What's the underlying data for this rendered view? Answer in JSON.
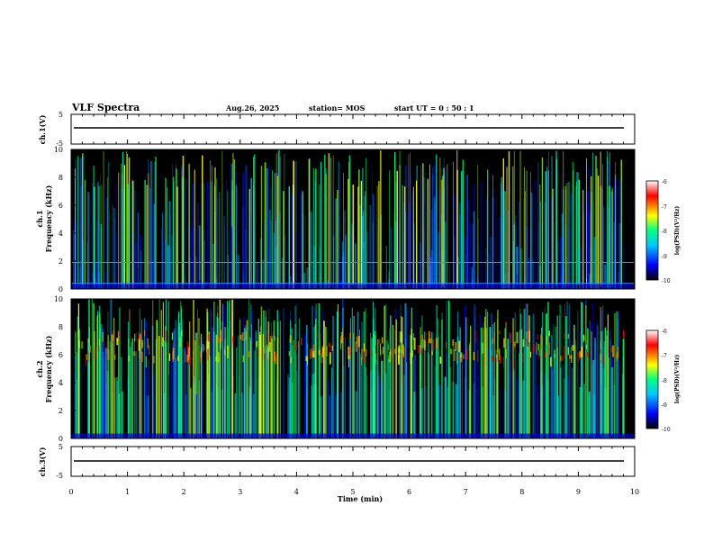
{
  "chart_data": {
    "type": "heatmap",
    "title": "VLF Spectra",
    "date": "Aug.26, 2025",
    "station": "station= MOS",
    "start_ut": "start UT =  0 : 50 : 1",
    "xlabel": "Time (min)",
    "xlim": [
      0,
      10
    ],
    "xticks": [
      "0",
      "1",
      "2",
      "3",
      "4",
      "5",
      "6",
      "7",
      "8",
      "9",
      "10"
    ],
    "panels": [
      {
        "id": "ch1-waveform",
        "kind": "line",
        "ylabel": "ch.1(V)",
        "ylim": [
          -5,
          5
        ],
        "yticks": [
          "5",
          "-5"
        ],
        "baseline": 0
      },
      {
        "id": "ch1-spectrogram",
        "kind": "spectrogram",
        "ylabel": "ch.1\nFrequency (kHz)",
        "ylabel_line1": "ch.1",
        "ylabel_line2": "Frequency (kHz)",
        "ylim": [
          0,
          10
        ],
        "yticks": [
          "0",
          "2",
          "4",
          "6",
          "8",
          "10"
        ],
        "narrowband_lines_khz": [
          0.4,
          1.9
        ],
        "typical_upper_khz": 9.0
      },
      {
        "id": "ch2-spectrogram",
        "kind": "spectrogram",
        "ylabel_line1": "ch.2",
        "ylabel_line2": "Frequency (kHz)",
        "ylim": [
          0,
          10
        ],
        "yticks": [
          "0",
          "2",
          "4",
          "6",
          "8",
          "10"
        ],
        "intense_band_khz": [
          5.5,
          7.5
        ]
      },
      {
        "id": "ch3-waveform",
        "kind": "line",
        "ylabel": "ch.3(V)",
        "ylim": [
          -5,
          5
        ],
        "yticks": [
          "5",
          "-5"
        ],
        "baseline": 0
      }
    ],
    "colorbar": {
      "label": "log(PSD)(V²/Hz)",
      "range": [
        -10,
        -6
      ],
      "ticks": [
        "-6",
        "-7",
        "-8",
        "-9",
        "-10"
      ],
      "colors": [
        "#000000",
        "#0000ff",
        "#00c8ff",
        "#00ff80",
        "#ffff00",
        "#ff0000",
        "#ffffff"
      ]
    }
  }
}
